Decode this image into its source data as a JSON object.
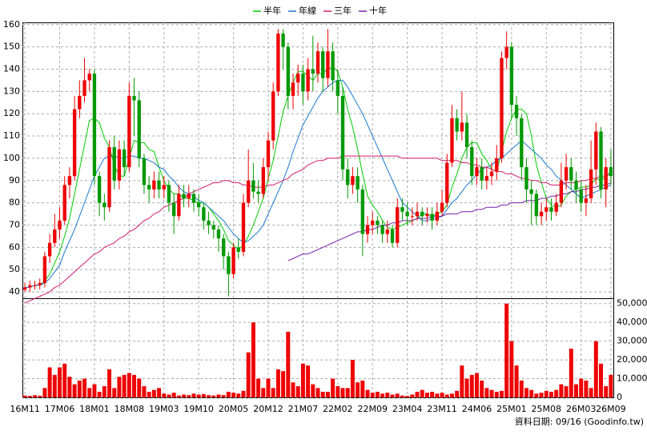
{
  "chart_data": {
    "type": "candlestick",
    "categories": [
      "16M11",
      null,
      null,
      null,
      null,
      null,
      null,
      "17M06",
      null,
      null,
      null,
      null,
      null,
      null,
      "18M01",
      null,
      null,
      null,
      null,
      null,
      null,
      "18M08",
      null,
      null,
      null,
      null,
      null,
      null,
      "19M03",
      null,
      null,
      null,
      null,
      null,
      null,
      "19M10",
      null,
      null,
      null,
      null,
      null,
      null,
      "20M05",
      null,
      null,
      null,
      null,
      null,
      null,
      "20M12",
      null,
      null,
      null,
      null,
      null,
      null,
      "21M07",
      null,
      null,
      null,
      null,
      null,
      null,
      "22M02",
      null,
      null,
      null,
      null,
      null,
      null,
      "22M09",
      null,
      null,
      null,
      null,
      null,
      null,
      "23M04",
      null,
      null,
      null,
      null,
      null,
      null,
      "23M11",
      null,
      null,
      null,
      null,
      null,
      null,
      "24M06",
      null,
      null,
      null,
      null,
      null,
      null,
      "25M01",
      null,
      null,
      null,
      null,
      null,
      null,
      "25M08",
      null,
      null,
      null,
      null,
      null,
      null,
      "26M03",
      null,
      null,
      null,
      null,
      null,
      "26M09"
    ],
    "open": [
      41,
      42,
      43,
      43,
      44,
      56,
      62,
      68,
      72,
      88,
      92,
      122,
      128,
      135,
      138,
      92,
      80,
      78,
      105,
      90,
      104,
      96,
      128,
      126,
      100,
      88,
      86,
      90,
      86,
      88,
      80,
      74,
      84,
      82,
      84,
      80,
      78,
      72,
      70,
      68,
      64,
      56,
      48,
      60,
      58,
      80,
      90,
      85,
      84,
      96,
      108,
      130,
      156,
      150,
      128,
      134,
      138,
      130,
      140,
      138,
      148,
      136,
      148,
      135,
      128,
      95,
      88,
      92,
      86,
      66,
      70,
      72,
      70,
      66,
      68,
      62,
      78,
      76,
      74,
      74,
      76,
      74,
      75,
      72,
      76,
      80,
      98,
      118,
      112,
      116,
      105,
      92,
      96,
      90,
      92,
      94,
      100,
      145,
      150,
      124,
      118,
      96,
      86,
      84,
      74,
      76,
      78,
      76,
      80,
      90,
      96,
      90,
      86,
      80,
      82,
      95,
      112,
      86,
      96
    ],
    "high": [
      44,
      45,
      45,
      46,
      58,
      66,
      75,
      78,
      92,
      96,
      128,
      135,
      145,
      140,
      140,
      94,
      84,
      108,
      110,
      108,
      108,
      134,
      136,
      130,
      102,
      92,
      94,
      94,
      92,
      90,
      84,
      88,
      88,
      88,
      86,
      84,
      80,
      76,
      72,
      70,
      66,
      58,
      62,
      64,
      84,
      104,
      98,
      90,
      100,
      112,
      134,
      158,
      158,
      152,
      138,
      142,
      142,
      145,
      155,
      152,
      150,
      158,
      152,
      140,
      132,
      100,
      96,
      96,
      88,
      74,
      76,
      74,
      72,
      72,
      70,
      82,
      82,
      80,
      78,
      80,
      78,
      78,
      78,
      80,
      86,
      102,
      124,
      122,
      130,
      120,
      108,
      100,
      100,
      96,
      98,
      106,
      148,
      157,
      152,
      128,
      120,
      100,
      90,
      86,
      80,
      82,
      82,
      84,
      98,
      102,
      100,
      94,
      90,
      88,
      108,
      116,
      114,
      100,
      104
    ],
    "low": [
      40,
      40,
      41,
      41,
      42,
      53,
      60,
      64,
      70,
      82,
      90,
      118,
      125,
      130,
      88,
      74,
      72,
      76,
      86,
      86,
      92,
      94,
      110,
      96,
      84,
      80,
      82,
      82,
      82,
      76,
      66,
      72,
      78,
      78,
      76,
      74,
      68,
      66,
      64,
      58,
      50,
      38,
      46,
      55,
      56,
      78,
      82,
      80,
      82,
      90,
      104,
      128,
      140,
      122,
      122,
      128,
      124,
      126,
      130,
      134,
      130,
      132,
      130,
      120,
      90,
      82,
      84,
      80,
      56,
      62,
      66,
      66,
      62,
      62,
      60,
      60,
      72,
      70,
      70,
      72,
      70,
      71,
      68,
      70,
      74,
      78,
      96,
      108,
      108,
      100,
      88,
      88,
      86,
      86,
      88,
      90,
      98,
      140,
      118,
      110,
      90,
      80,
      70,
      70,
      70,
      72,
      72,
      74,
      78,
      86,
      86,
      80,
      76,
      74,
      80,
      88,
      82,
      78,
      88
    ],
    "close": [
      42,
      43,
      43,
      44,
      56,
      62,
      68,
      72,
      88,
      92,
      122,
      128,
      135,
      138,
      92,
      80,
      78,
      105,
      90,
      104,
      96,
      128,
      126,
      100,
      88,
      86,
      90,
      86,
      88,
      80,
      74,
      84,
      82,
      84,
      80,
      78,
      72,
      70,
      68,
      64,
      56,
      48,
      60,
      58,
      80,
      90,
      85,
      84,
      96,
      108,
      130,
      156,
      150,
      128,
      134,
      138,
      130,
      140,
      138,
      148,
      136,
      148,
      135,
      128,
      95,
      88,
      92,
      86,
      66,
      70,
      72,
      70,
      66,
      68,
      62,
      78,
      76,
      74,
      74,
      76,
      74,
      75,
      72,
      76,
      80,
      98,
      118,
      112,
      116,
      105,
      92,
      96,
      90,
      92,
      94,
      100,
      145,
      150,
      124,
      118,
      96,
      86,
      84,
      74,
      76,
      78,
      76,
      80,
      90,
      96,
      90,
      86,
      80,
      82,
      95,
      112,
      86,
      96,
      92
    ],
    "volume": [
      1000,
      800,
      1200,
      900,
      5000,
      16000,
      12000,
      16000,
      18000,
      11000,
      7000,
      9000,
      10000,
      5000,
      7000,
      3000,
      6000,
      15000,
      5000,
      11000,
      12000,
      13000,
      12000,
      10000,
      6000,
      3000,
      4000,
      5000,
      2000,
      1500,
      2500,
      1000,
      1500,
      1200,
      2000,
      1500,
      1800,
      1200,
      1000,
      1500,
      1200,
      3000,
      2500,
      2000,
      3500,
      24000,
      40000,
      10000,
      5000,
      10000,
      5000,
      15000,
      14000,
      35000,
      8000,
      6000,
      18000,
      17000,
      7000,
      5000,
      3000,
      3000,
      10000,
      6000,
      5000,
      5000,
      20000,
      8000,
      9000,
      4000,
      2500,
      3000,
      2000,
      2500,
      1500,
      2000,
      1000,
      800,
      1500,
      3000,
      4000,
      2500,
      3000,
      2000,
      2500,
      1500,
      2000,
      3500,
      17000,
      10000,
      12000,
      13000,
      9000,
      5000,
      4000,
      3000,
      3500,
      50000,
      30000,
      17000,
      9000,
      5000,
      4000,
      2000,
      2500,
      3500,
      3000,
      4000,
      7000,
      6000,
      26000,
      7000,
      10000,
      9000,
      5000,
      30000,
      18000,
      6000,
      12000
    ],
    "up_color": "#ee0000",
    "down_color": "#009900",
    "volume_color": "#ee0000",
    "series": [
      {
        "name": "半年",
        "color": "#00cc00",
        "values": [
          42,
          42,
          43,
          43,
          45,
          48,
          53,
          58,
          65,
          73,
          84,
          95,
          106,
          117,
          118,
          116,
          109,
          105,
          97,
          92,
          92,
          100,
          108,
          107,
          107,
          104,
          103,
          96,
          90,
          86,
          84,
          84,
          82,
          82,
          81,
          80,
          80,
          78,
          75,
          72,
          68,
          63,
          61,
          59,
          61,
          65,
          70,
          76,
          82,
          91,
          99,
          110,
          121,
          128,
          134,
          139,
          139,
          137,
          135,
          138,
          138,
          140,
          141,
          139,
          132,
          122,
          114,
          104,
          93,
          83,
          79,
          76,
          72,
          69,
          68,
          69,
          70,
          71,
          72,
          73,
          75,
          75,
          74,
          75,
          76,
          79,
          87,
          93,
          100,
          105,
          107,
          107,
          102,
          99,
          95,
          94,
          103,
          112,
          118,
          122,
          122,
          120,
          110,
          97,
          89,
          82,
          79,
          78,
          79,
          83,
          85,
          86,
          87,
          87,
          88,
          91,
          90,
          92,
          94
        ]
      },
      {
        "name": "年線",
        "color": "#1a78d0",
        "values": [
          42,
          42,
          43,
          43,
          44,
          46,
          49,
          52,
          58,
          63,
          68,
          74,
          80,
          86,
          92,
          96,
          100,
          101,
          101,
          100,
          100,
          101,
          101,
          100,
          100,
          99,
          98,
          96,
          95,
          92,
          90,
          87,
          85,
          84,
          83,
          81,
          80,
          78,
          76,
          74,
          72,
          69,
          66,
          64,
          62,
          63,
          65,
          67,
          70,
          75,
          80,
          85,
          90,
          96,
          103,
          109,
          115,
          119,
          123,
          127,
          130,
          132,
          134,
          135,
          135,
          132,
          128,
          124,
          120,
          115,
          110,
          105,
          100,
          95,
          90,
          85,
          80,
          78,
          76,
          74,
          72,
          72,
          73,
          73,
          74,
          77,
          80,
          82,
          85,
          88,
          90,
          93,
          95,
          96,
          97,
          99,
          100,
          102,
          104,
          106,
          108,
          106,
          104,
          102,
          100,
          97,
          95,
          92,
          90,
          88,
          86,
          84,
          82,
          83,
          84,
          85,
          86,
          87,
          88
        ]
      },
      {
        "name": "三年",
        "color": "#d41c6c",
        "values": [
          35,
          36,
          37,
          38,
          39,
          40,
          42,
          43,
          45,
          47,
          49,
          51,
          53,
          55,
          57,
          58,
          60,
          61,
          62,
          64,
          65,
          67,
          68,
          70,
          72,
          73,
          75,
          76,
          78,
          79,
          80,
          81,
          82,
          84,
          85,
          86,
          87,
          88,
          89,
          89,
          90,
          90,
          89,
          89,
          88,
          88,
          87,
          87,
          87,
          88,
          88,
          89,
          90,
          91,
          93,
          94,
          95,
          97,
          98,
          99,
          99,
          100,
          100,
          100,
          101,
          101,
          101,
          101,
          101,
          101,
          101,
          101,
          101,
          101,
          101,
          101,
          100,
          100,
          100,
          100,
          100,
          100,
          100,
          100,
          99,
          99,
          99,
          99,
          98,
          98,
          97,
          97,
          96,
          96,
          95,
          94,
          94,
          93,
          93,
          92,
          91,
          91,
          90,
          90,
          89,
          89,
          88,
          88,
          88,
          89,
          89,
          89,
          90,
          90,
          91,
          91,
          92,
          92,
          93
        ]
      },
      {
        "name": "十年",
        "color": "#7a1fa8",
        "values": [
          null,
          null,
          null,
          null,
          null,
          null,
          null,
          null,
          null,
          null,
          null,
          null,
          null,
          null,
          null,
          null,
          null,
          null,
          null,
          null,
          null,
          null,
          null,
          null,
          null,
          null,
          null,
          null,
          null,
          null,
          null,
          null,
          null,
          null,
          null,
          null,
          null,
          null,
          null,
          null,
          null,
          null,
          null,
          null,
          null,
          null,
          null,
          null,
          null,
          null,
          null,
          null,
          null,
          54,
          55,
          56,
          57,
          57,
          58,
          59,
          60,
          61,
          62,
          63,
          64,
          65,
          66,
          67,
          67,
          68,
          68,
          69,
          70,
          70,
          71,
          71,
          72,
          72,
          72,
          73,
          73,
          73,
          74,
          74,
          74,
          75,
          75,
          75,
          76,
          76,
          76,
          77,
          77,
          78,
          78,
          78,
          79,
          79,
          80,
          80,
          80,
          81,
          81,
          81,
          82,
          82,
          83,
          83,
          84,
          84,
          85,
          85,
          86,
          86,
          87,
          87,
          88,
          88,
          89
        ]
      }
    ],
    "ylim": [
      37.5,
      161
    ],
    "yticks": [
      40,
      50,
      60,
      70,
      80,
      90,
      100,
      110,
      120,
      130,
      140,
      150,
      160
    ],
    "y2lim": [
      0,
      52000
    ],
    "y2ticks": [
      0,
      {
        "value": 10000,
        "label": "10,000"
      },
      {
        "value": 20000,
        "label": "20,000"
      },
      {
        "value": 30000,
        "label": "30,000"
      },
      {
        "value": 40000,
        "label": "40,000"
      },
      {
        "value": 50000,
        "label": "50,000"
      }
    ],
    "grid": true,
    "note": "資料日期: 09/16 (Goodinfo.tw)"
  }
}
